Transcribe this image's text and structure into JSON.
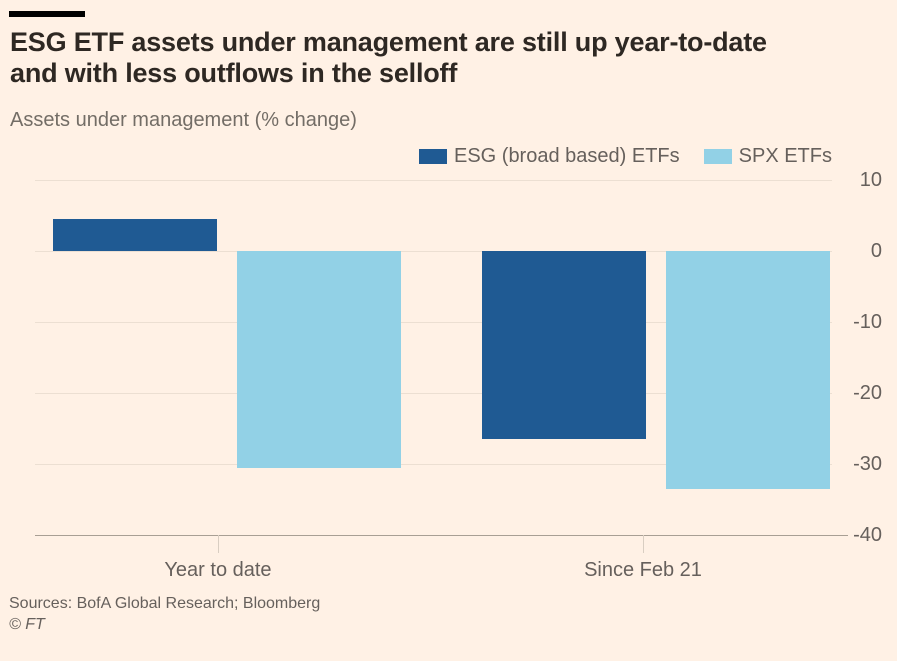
{
  "page": {
    "background": "#FFF1E5"
  },
  "header": {
    "title_line1": "ESG ETF assets under management are still up year-to-date",
    "title_line2": "and with less outflows in the selloff"
  },
  "chart_data": {
    "type": "bar",
    "title": "ESG ETF assets under management are still up year-to-date and with less outflows in the selloff",
    "ylabel": "Assets under management (% change)",
    "categories": [
      "Year to date",
      "Since Feb 21"
    ],
    "series": [
      {
        "name": "ESG (broad based) ETFs",
        "color": "#1f5a93",
        "values": [
          4.5,
          -26.5
        ]
      },
      {
        "name": "SPX ETFs",
        "color": "#92d1e6",
        "values": [
          -30.5,
          -33.5
        ]
      }
    ],
    "ylim": [
      -40,
      10
    ],
    "yticks": [
      10,
      0,
      -10,
      -20,
      -30,
      -40
    ],
    "grid": true,
    "legend_position": "top-right"
  },
  "footer": {
    "sources": "Sources: BofA Global Research; Bloomberg",
    "copyright": "© FT"
  }
}
